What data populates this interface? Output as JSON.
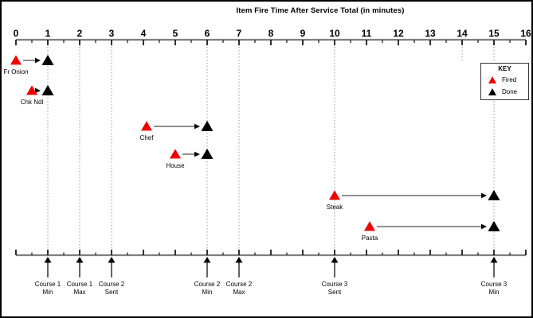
{
  "chart_data": {
    "type": "scatter",
    "subtype": "timeline-gantt",
    "title": "Item Fire Time After Service Total (in minutes)",
    "xlabel": "",
    "ylabel": "",
    "xlim": [
      0,
      16
    ],
    "x_major_step": 1,
    "x_minor_step": 0.5,
    "x_tick_labels": [
      "0",
      "1",
      "2",
      "3",
      "4",
      "5",
      "6",
      "7",
      "8",
      "9",
      "10",
      "11",
      "12",
      "13",
      "14",
      "15",
      "16"
    ],
    "axis_repeated_at_bottom": true,
    "grid": "dotted vertical lines at course marker times",
    "legend_position": "upper-right",
    "series": [
      {
        "name": "Fired",
        "marker": "triangle",
        "color": "#f00000"
      },
      {
        "name": "Done",
        "marker": "triangle",
        "color": "#000000"
      }
    ],
    "items": [
      {
        "label": "Fr Onion",
        "fired": 0,
        "done": 1
      },
      {
        "label": "Chk Ndl",
        "fired": 0.5,
        "done": 1
      },
      {
        "label": "Chef",
        "fired": 4.1,
        "done": 6
      },
      {
        "label": "House",
        "fired": 5,
        "done": 6
      },
      {
        "label": "Steak",
        "fired": 10,
        "done": 15
      },
      {
        "label": "Pasta",
        "fired": 11.1,
        "done": 15
      }
    ],
    "course_markers": [
      {
        "t": 1,
        "line1": "Course 1",
        "line2": "Min"
      },
      {
        "t": 2,
        "line1": "Course 1",
        "line2": "Max"
      },
      {
        "t": 3,
        "line1": "Course 2",
        "line2": "Sent"
      },
      {
        "t": 6,
        "line1": "Course 2",
        "line2": "Min"
      },
      {
        "t": 7,
        "line1": "Course 2",
        "line2": "Max"
      },
      {
        "t": 10,
        "line1": "Course 3",
        "line2": "Sent"
      },
      {
        "t": 15,
        "line1": "Course 3",
        "line2": "Min"
      }
    ],
    "extra_short_dotted_lines": [
      14
    ]
  },
  "key": {
    "title": "KEY",
    "items": [
      {
        "label": "Fired",
        "color": "#f00000"
      },
      {
        "label": "Done",
        "color": "#000000"
      }
    ]
  },
  "colors": {
    "fired": "#f00000",
    "done": "#000000",
    "axis_line": "#7f7f7f",
    "tick": "#1a1a1a",
    "grid_dotted": "#9a9a9a",
    "arrow": "#4d4d4d",
    "text": "#000000"
  }
}
